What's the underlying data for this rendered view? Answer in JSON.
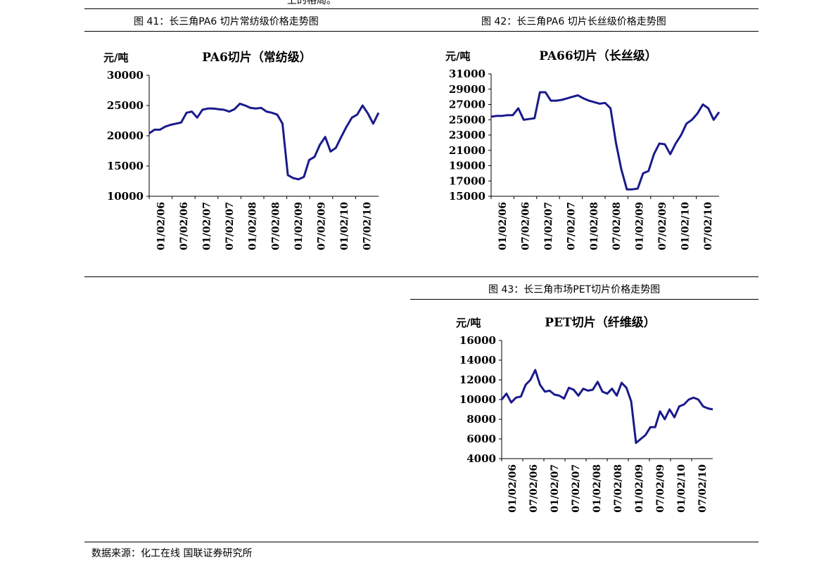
{
  "page": {
    "top_fragment": "上的格局。",
    "source_note": "数据来源：化工在线 国联证券研究所"
  },
  "figures": [
    {
      "title": "图 41：长三角PA6 切片常纺级价格走势图"
    },
    {
      "title": "图 42：长三角PA6 切片长丝级价格走势图"
    },
    {
      "title": "图 43：长三角市场PET切片价格走势图"
    }
  ],
  "chart_data": [
    {
      "type": "line",
      "title": "PA6切片（常纺级）",
      "ylabel": "元/吨",
      "ylim": [
        10000,
        30000
      ],
      "yticks": [
        10000,
        15000,
        20000,
        25000,
        30000
      ],
      "xticks": [
        "01/02/06",
        "07/02/06",
        "01/02/07",
        "07/02/07",
        "01/02/08",
        "07/02/08",
        "01/02/09",
        "07/02/09",
        "01/02/10",
        "07/02/10"
      ],
      "series_color": "#1a1a8c",
      "series": [
        {
          "values": [
            20400,
            21000,
            21000,
            21500,
            21800,
            22000,
            22200,
            23800,
            24000,
            23000,
            24300,
            24500,
            24500,
            24400,
            24300,
            24000,
            24400,
            25300,
            25000,
            24600,
            24500,
            24600,
            24000,
            23800,
            23500,
            22000,
            13500,
            13000,
            12800,
            13200,
            16000,
            16500,
            18500,
            19800,
            17400,
            18000,
            19800,
            21500,
            23000,
            23500,
            25000,
            23700,
            22000,
            23800
          ]
        }
      ]
    },
    {
      "type": "line",
      "title": "PA66切片（长丝级）",
      "ylabel": "元/吨",
      "ylim": [
        15000,
        31000
      ],
      "yticks": [
        15000,
        17000,
        19000,
        21000,
        23000,
        25000,
        27000,
        29000,
        31000
      ],
      "xticks": [
        "01/02/06",
        "07/02/06",
        "01/02/07",
        "07/02/07",
        "01/02/08",
        "07/02/08",
        "01/02/09",
        "07/02/09",
        "01/02/10",
        "07/02/10"
      ],
      "series_color": "#1a1a8c",
      "series": [
        {
          "values": [
            25400,
            25500,
            25500,
            25600,
            25600,
            26500,
            25000,
            25100,
            25200,
            28600,
            28600,
            27500,
            27500,
            27600,
            27800,
            28000,
            28200,
            27800,
            27500,
            27300,
            27100,
            27200,
            26500,
            22000,
            18500,
            15900,
            15900,
            16000,
            18000,
            18300,
            20500,
            21900,
            21800,
            20500,
            21900,
            23000,
            24500,
            25000,
            25800,
            27000,
            26500,
            25000,
            26000
          ]
        }
      ]
    },
    {
      "type": "line",
      "title": "PET切片（纤维级）",
      "ylabel": "元/吨",
      "ylim": [
        4000,
        16000
      ],
      "yticks": [
        4000,
        6000,
        8000,
        10000,
        12000,
        14000,
        16000
      ],
      "xticks": [
        "01/02/06",
        "07/02/06",
        "01/02/07",
        "07/02/07",
        "01/02/08",
        "07/02/08",
        "01/02/09",
        "07/02/09",
        "01/02/10",
        "07/02/10"
      ],
      "series_color": "#1a1a8c",
      "series": [
        {
          "values": [
            10000,
            10600,
            9700,
            10200,
            10300,
            11500,
            12000,
            13000,
            11500,
            10800,
            10900,
            10500,
            10400,
            10100,
            11200,
            11000,
            10400,
            11100,
            10900,
            11000,
            11800,
            10800,
            10600,
            11100,
            10400,
            11700,
            11200,
            9800,
            5600,
            6000,
            6400,
            7200,
            7200,
            8800,
            8000,
            9000,
            8200,
            9300,
            9500,
            10000,
            10200,
            10000,
            9300,
            9100,
            9000
          ]
        }
      ]
    }
  ]
}
